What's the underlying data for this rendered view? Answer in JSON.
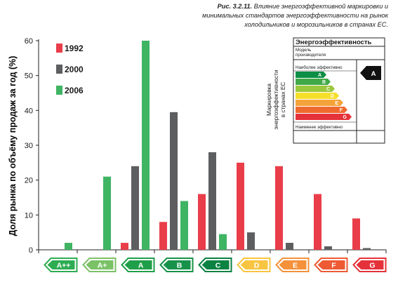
{
  "caption": {
    "fig_no": "Рис. 3.2.11.",
    "text": "Влияние энергоэффективной маркировки и минимальных стандартов энергоэффективности на рынок холодильников и морозильников в странах ЕС."
  },
  "chart_data": {
    "type": "bar",
    "ylabel": "Доля рынка по объёму продаж за год (%)",
    "ylim": [
      0,
      60
    ],
    "yticks": [
      0,
      10,
      20,
      30,
      40,
      50,
      60
    ],
    "categories": [
      "A++",
      "A+",
      "A",
      "B",
      "C",
      "D",
      "E",
      "F",
      "G"
    ],
    "category_colors": [
      "#2eac52",
      "#7bc267",
      "#1f9f4a",
      "#17924a",
      "#0b8242",
      "#f9c441",
      "#f4913a",
      "#ee5a33",
      "#e5323a"
    ],
    "series": [
      {
        "name": "1992",
        "color": "#ea3d4a",
        "values": [
          0,
          0,
          2,
          8,
          16,
          25,
          24,
          16,
          9
        ]
      },
      {
        "name": "2000",
        "color": "#5d5e60",
        "values": [
          0,
          0,
          24,
          39.5,
          28,
          5,
          2,
          1,
          0.5
        ]
      },
      {
        "name": "2006",
        "color": "#3fb462",
        "values": [
          2,
          21,
          60,
          14,
          4.5,
          0,
          0,
          0,
          0
        ]
      }
    ],
    "legend_position": "top-left",
    "grid": false
  },
  "inset": {
    "title": "Энергоэффективность",
    "model_label": "Модель",
    "maker_label": "производителя",
    "most_label": "Наиболее эффективно",
    "least_label": "Наименее эффективно",
    "side_label_1": "Маркировка",
    "side_label_2": "энергоэффективности",
    "side_label_3": "в странах ЕС",
    "rating": "A",
    "letters": [
      "A",
      "B",
      "C",
      "D",
      "E",
      "F",
      "G"
    ],
    "letter_colors": [
      "#0d8f45",
      "#41a948",
      "#9cc83e",
      "#f6df2b",
      "#f4a33a",
      "#ef6a2f",
      "#e5323a"
    ]
  }
}
